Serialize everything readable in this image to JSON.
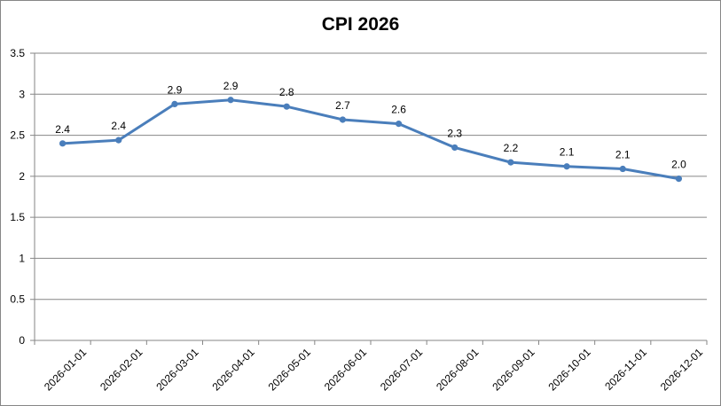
{
  "chart_data": {
    "type": "line",
    "title": "CPI 2026",
    "xlabel": "",
    "ylabel": "",
    "categories": [
      "2026-01-01",
      "2026-02-01",
      "2026-03-01",
      "2026-04-01",
      "2026-05-01",
      "2026-06-01",
      "2026-07-01",
      "2026-08-01",
      "2026-09-01",
      "2026-10-01",
      "2026-11-01",
      "2026-12-01"
    ],
    "values": [
      2.4,
      2.44,
      2.88,
      2.93,
      2.85,
      2.69,
      2.64,
      2.35,
      2.17,
      2.12,
      2.09,
      1.97
    ],
    "data_labels": [
      "2.4",
      "2.4",
      "2.9",
      "2.9",
      "2.8",
      "2.7",
      "2.6",
      "2.3",
      "2.2",
      "2.1",
      "2.1",
      "2.0"
    ],
    "ylim": [
      0,
      3.5
    ],
    "yticks": [
      "0",
      "0.5",
      "1",
      "1.5",
      "2",
      "2.5",
      "3",
      "3.5"
    ],
    "grid": true,
    "legend": "none",
    "line_color": "#4a7ebb",
    "grid_color": "#868686"
  }
}
